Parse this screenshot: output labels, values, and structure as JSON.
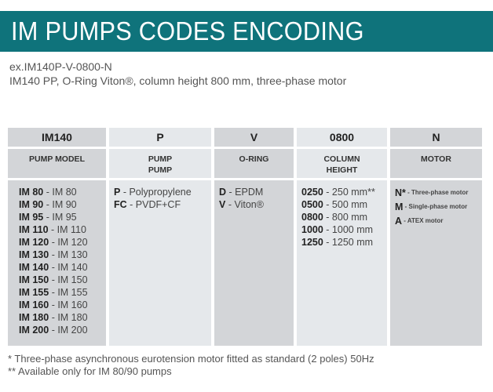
{
  "title": "IM PUMPS CODES ENCODING",
  "example_code": "ex.IM140P-V-0800-N",
  "example_description": "IM140 PP, O-Ring Viton®, column height 800 mm, three-phase motor",
  "columns": [
    {
      "code": "IM140",
      "label_lines": [
        "PUMP MODEL"
      ],
      "items": [
        {
          "key": "IM 80",
          "value": "IM 80"
        },
        {
          "key": "IM 90",
          "value": "IM 90"
        },
        {
          "key": "IM 95",
          "value": "IM 95"
        },
        {
          "key": "IM 110",
          "value": "IM 110"
        },
        {
          "key": "IM 120",
          "value": "IM 120"
        },
        {
          "key": "IM 130",
          "value": "IM 130"
        },
        {
          "key": "IM 140",
          "value": "IM 140"
        },
        {
          "key": "IM 150",
          "value": "IM 150"
        },
        {
          "key": "IM 155",
          "value": "IM 155"
        },
        {
          "key": "IM 160",
          "value": "IM 160"
        },
        {
          "key": "IM 180",
          "value": "IM 180"
        },
        {
          "key": "IM 200",
          "value": "IM 200"
        }
      ]
    },
    {
      "code": "P",
      "label_lines": [
        "PUMP",
        "PUMP"
      ],
      "items": [
        {
          "key": "P",
          "value": "Polypropylene"
        },
        {
          "key": "FC",
          "value": "PVDF+CF"
        }
      ]
    },
    {
      "code": "V",
      "label_lines": [
        "O-RING"
      ],
      "items": [
        {
          "key": "D",
          "value": "EPDM"
        },
        {
          "key": "V",
          "value": "Viton®"
        }
      ]
    },
    {
      "code": "0800",
      "label_lines": [
        "COLUMN",
        "HEIGHT"
      ],
      "items": [
        {
          "key": "0250",
          "value": "250 mm**"
        },
        {
          "key": "0500",
          "value": "500 mm"
        },
        {
          "key": "0800",
          "value": "800 mm"
        },
        {
          "key": "1000",
          "value": "1000 mm"
        },
        {
          "key": "1250",
          "value": "1250 mm"
        }
      ]
    },
    {
      "code": "N",
      "label_lines": [
        "MOTOR"
      ],
      "items": [
        {
          "key": "N*",
          "value": "Three-phase motor"
        },
        {
          "key": "M",
          "value": "Single-phase motor"
        },
        {
          "key": "A",
          "value": "ATEX motor"
        }
      ]
    }
  ],
  "footnotes": [
    "* Three-phase asynchronous eurotension motor fitted as standard (2 poles) 50Hz",
    "** Available only for IM 80/90 pumps"
  ],
  "colors": {
    "banner": "#0f737b",
    "cell_dark": "#d3d5d8",
    "cell_light": "#e5e8eb"
  }
}
